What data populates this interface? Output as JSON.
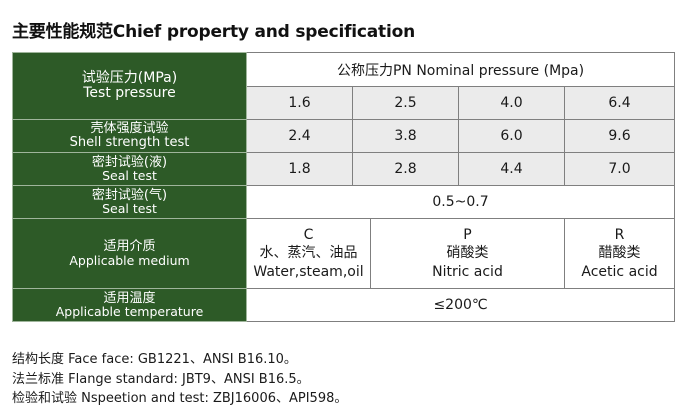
{
  "title": "主要性能规范Chief property and specification",
  "table": {
    "header": "公称压力PN Nominal pressure (Mpa)",
    "test_pressure": {
      "zh": "试验压力(MPa)",
      "en": "Test pressure"
    },
    "nominal_values": [
      "1.6",
      "2.5",
      "4.0",
      "6.4"
    ],
    "shell_strength": {
      "zh": "壳体强度试验",
      "en": "Shell strength test",
      "values": [
        "2.4",
        "3.8",
        "6.0",
        "9.6"
      ]
    },
    "seal_liquid": {
      "zh": "密封试验(液)",
      "en": "Seal test",
      "values": [
        "1.8",
        "2.8",
        "4.4",
        "7.0"
      ]
    },
    "seal_gas": {
      "zh": "密封试验(气)",
      "en": "Seal test",
      "value": "0.5~0.7"
    },
    "medium": {
      "zh": "适用介质",
      "en": "Applicable medium",
      "columns": [
        {
          "code": "C",
          "zh": "水、蒸汽、油品",
          "en": "Water,steam,oil"
        },
        {
          "code": "P",
          "zh": "硝酸类",
          "en": "Nitric acid"
        },
        {
          "code": "R",
          "zh": "醋酸类",
          "en": "Acetic acid"
        }
      ]
    },
    "temperature": {
      "zh": "适用温度",
      "en": "Applicable temperature",
      "value": "≤200℃"
    }
  },
  "notes": [
    "结构长度  Face face: GB1221、ANSI B16.10。",
    "法兰标准  Flange standard: JBT9、ANSI B16.5。",
    "检验和试验  Nspeetion and test: ZBJ16006、API598。"
  ],
  "colors": {
    "label_bg": "#2d5a27",
    "value_bg": "#ebebeb",
    "border": "#7f7f7f"
  }
}
